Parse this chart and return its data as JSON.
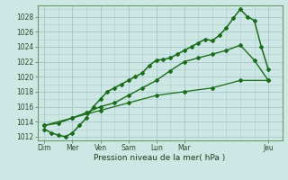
{
  "background_color": "#cde8e4",
  "grid_color": "#aacccc",
  "line_color": "#1a6b1a",
  "title": "Pression niveau de la mer( hPa )",
  "ylim": [
    1011.5,
    1029.5
  ],
  "yticks": [
    1012,
    1014,
    1016,
    1018,
    1020,
    1022,
    1024,
    1026,
    1028
  ],
  "xtick_labels": [
    "Dim",
    "Mer",
    "Ven",
    "Sam",
    "Lun",
    "Mar",
    "Jeu"
  ],
  "xtick_positions": [
    0,
    2,
    4,
    6,
    8,
    10,
    16
  ],
  "xlim": [
    -0.5,
    17.0
  ],
  "series1_x": [
    0,
    0.5,
    1,
    1.5,
    2,
    2.5,
    3,
    3.5,
    4,
    4.5,
    5,
    5.5,
    6,
    6.5,
    7,
    7.5,
    8,
    8.5,
    9,
    9.5,
    10,
    10.5,
    11,
    11.5,
    12,
    12.5,
    13,
    13.5,
    14,
    14.5,
    15,
    15.5,
    16
  ],
  "series1_y": [
    1013.0,
    1012.5,
    1012.2,
    1012.0,
    1012.5,
    1013.5,
    1014.5,
    1016.0,
    1017.0,
    1018.0,
    1018.5,
    1019.0,
    1019.5,
    1020.0,
    1020.5,
    1021.5,
    1022.2,
    1022.3,
    1022.5,
    1023.0,
    1023.5,
    1024.0,
    1024.5,
    1025.0,
    1024.8,
    1025.5,
    1026.5,
    1027.8,
    1029.0,
    1028.0,
    1027.5,
    1024.0,
    1021.0
  ],
  "series2_x": [
    0,
    1,
    2,
    3,
    4,
    5,
    6,
    7,
    8,
    9,
    10,
    11,
    12,
    13,
    14,
    15,
    16
  ],
  "series2_y": [
    1013.5,
    1013.8,
    1014.5,
    1015.2,
    1016.0,
    1016.5,
    1017.5,
    1018.5,
    1019.5,
    1020.8,
    1022.0,
    1022.5,
    1023.0,
    1023.5,
    1024.2,
    1022.2,
    1019.5
  ],
  "series3_x": [
    0,
    2,
    4,
    6,
    8,
    10,
    12,
    14,
    16
  ],
  "series3_y": [
    1013.5,
    1014.5,
    1015.5,
    1016.5,
    1017.5,
    1018.0,
    1018.5,
    1019.5,
    1019.5
  ]
}
